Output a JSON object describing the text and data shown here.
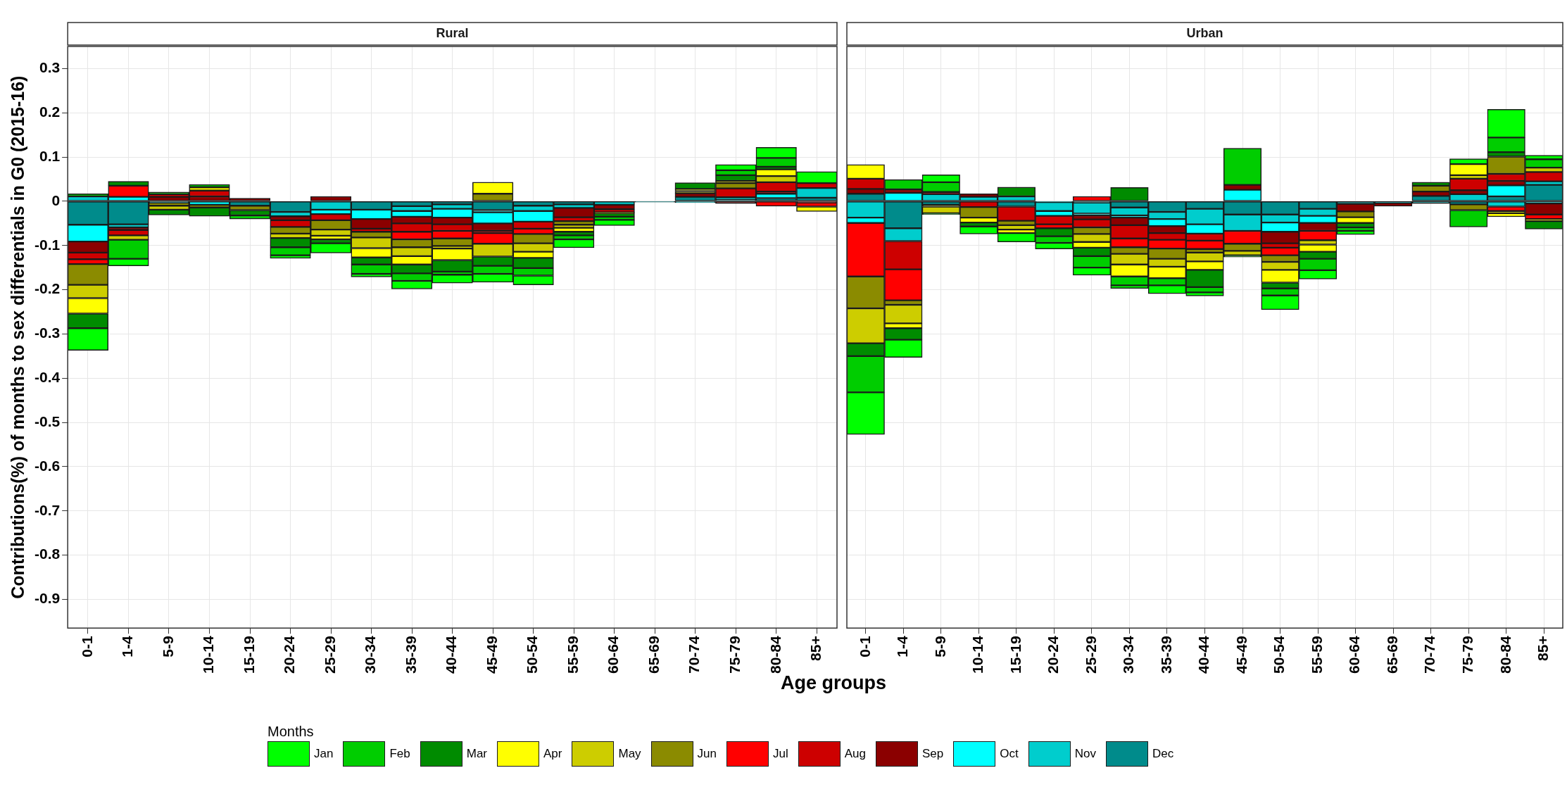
{
  "chart_data": [
    {
      "type": "bar",
      "title": "Rural",
      "xlabel": "Age groups",
      "ylabel": "Contributions(%) of months to sex differentials in G0 (2015-16)",
      "legend_title": "Months",
      "legend": "bottom",
      "stacked": true,
      "grid": true,
      "categories": [
        "0-1",
        "1-4",
        "5-9",
        "10-14",
        "15-19",
        "20-24",
        "25-29",
        "30-34",
        "35-39",
        "40-44",
        "45-49",
        "50-54",
        "55-59",
        "60-64",
        "65-69",
        "70-74",
        "75-79",
        "80-84",
        "85+"
      ],
      "ylim": [
        -0.965,
        0.35
      ],
      "yticks": [
        -0.9,
        -0.8,
        -0.7,
        -0.6,
        -0.5,
        -0.4,
        -0.3,
        -0.2,
        -0.1,
        0,
        0.1,
        0.2,
        0.3
      ],
      "series": [
        {
          "name": "Dec",
          "color": "#008b8b",
          "values": [
            -0.053,
            -0.052,
            -0.003,
            null,
            -0.01,
            -0.024,
            null,
            -0.019,
            -0.011,
            -0.007,
            -0.02,
            -0.01,
            -0.007,
            null,
            -0.002,
            0.01,
            0.003,
            0.007,
            0.008
          ]
        },
        {
          "name": "Nov",
          "color": "#00cdcd",
          "values": [
            0.011,
            -0.007,
            null,
            null,
            null,
            -0.01,
            -0.019,
            null,
            -0.011,
            -0.01,
            -0.005,
            -0.012,
            -0.008,
            -0.008,
            null,
            -0.003,
            0.006,
            null,
            0.022
          ]
        },
        {
          "name": "Oct",
          "color": "#00ffff",
          "values": [
            -0.038,
            0.01,
            null,
            -0.008,
            null,
            null,
            -0.01,
            -0.021,
            -0.013,
            -0.02,
            -0.025,
            -0.024,
            null,
            null,
            null,
            null,
            null,
            0.01,
            null
          ]
        },
        {
          "name": "Sep",
          "color": "#8b0000",
          "values": [
            -0.025,
            -0.006,
            0.01,
            0.011,
            0.007,
            -0.009,
            0.011,
            -0.022,
            -0.015,
            -0.015,
            -0.017,
            null,
            -0.021,
            -0.01,
            null,
            0.008,
            -0.005,
            0.005,
            -0.003
          ]
        },
        {
          "name": "Aug",
          "color": "#cd0000",
          "values": [
            -0.015,
            -0.012,
            0.006,
            0.013,
            null,
            -0.015,
            -0.014,
            -0.007,
            -0.019,
            -0.015,
            -0.005,
            -0.016,
            -0.009,
            -0.007,
            null,
            null,
            0.02,
            0.021,
            0.011
          ]
        },
        {
          "name": "Jul",
          "color": "#ff0000",
          "values": [
            -0.011,
            0.025,
            null,
            null,
            null,
            null,
            null,
            null,
            -0.017,
            -0.017,
            -0.024,
            -0.012,
            null,
            null,
            null,
            null,
            null,
            -0.011,
            -0.009
          ]
        },
        {
          "name": "Jun",
          "color": "#8b8b00",
          "values": [
            -0.047,
            null,
            -0.007,
            -0.006,
            -0.01,
            -0.015,
            -0.021,
            -0.013,
            -0.018,
            -0.017,
            0.017,
            -0.021,
            -0.008,
            null,
            null,
            0.005,
            0.012,
            null,
            null
          ]
        },
        {
          "name": "May",
          "color": "#cdcd00",
          "values": [
            -0.03,
            -0.01,
            -0.009,
            0.008,
            null,
            -0.01,
            -0.014,
            -0.024,
            -0.02,
            -0.006,
            -0.029,
            -0.019,
            -0.007,
            -0.002,
            null,
            0.005,
            0.005,
            0.014,
            null
          ]
        },
        {
          "name": "Apr",
          "color": "#ffff00",
          "values": [
            -0.035,
            null,
            null,
            null,
            null,
            null,
            -0.008,
            -0.021,
            -0.019,
            -0.026,
            0.026,
            -0.014,
            -0.009,
            null,
            null,
            null,
            null,
            0.015,
            -0.011
          ]
        },
        {
          "name": "Mar",
          "color": "#008b00",
          "values": [
            -0.033,
            0.01,
            -0.012,
            -0.02,
            -0.012,
            -0.021,
            -0.009,
            -0.016,
            -0.02,
            -0.026,
            -0.021,
            -0.023,
            -0.008,
            -0.008,
            null,
            0.014,
            0.013,
            0.006,
            null
          ]
        },
        {
          "name": "Feb",
          "color": "#00cd00",
          "values": [
            0.006,
            -0.043,
            0.005,
            0.006,
            -0.008,
            -0.018,
            null,
            -0.021,
            -0.017,
            -0.007,
            -0.018,
            -0.017,
            -0.009,
            -0.007,
            null,
            null,
            0.011,
            0.02,
            null
          ]
        },
        {
          "name": "Jan",
          "color": "#00ff00",
          "values": [
            -0.05,
            -0.016,
            null,
            null,
            null,
            -0.007,
            -0.022,
            -0.007,
            -0.018,
            -0.019,
            -0.019,
            -0.021,
            -0.019,
            -0.013,
            null,
            null,
            0.013,
            0.024,
            0.026
          ]
        }
      ]
    },
    {
      "type": "bar",
      "title": "Urban",
      "stacked": true,
      "grid": true,
      "tick_labels": "x",
      "categories": [
        "0-1",
        "1-4",
        "5-9",
        "10-14",
        "15-19",
        "20-24",
        "25-29",
        "30-34",
        "35-39",
        "40-44",
        "45-49",
        "50-54",
        "55-59",
        "60-64",
        "65-69",
        "70-74",
        "75-79",
        "80-84",
        "85+"
      ],
      "ylim": [
        -0.965,
        0.35
      ],
      "yticks": [
        -0.9,
        -0.8,
        -0.7,
        -0.6,
        -0.5,
        -0.4,
        -0.3,
        -0.2,
        -0.1,
        0,
        0.1,
        0.2,
        0.3
      ],
      "series": [
        {
          "color": "#008b8b",
          "values": [
            0.017,
            -0.061,
            -0.008,
            null,
            -0.012,
            -0.002,
            -0.003,
            -0.014,
            -0.024,
            -0.017,
            -0.03,
            -0.03,
            -0.017,
            -0.006,
            -0.004,
            0.012,
            -0.007,
            0.011,
            0.037
          ]
        },
        {
          "color": "#00cdcd",
          "values": [
            -0.037,
            -0.029,
            0.016,
            0.01,
            0.011,
            -0.02,
            -0.025,
            -0.018,
            -0.016,
            -0.035,
            -0.037,
            -0.018,
            -0.016,
            null,
            null,
            -0.005,
            0.016,
            -0.012,
            0.008
          ]
        },
        {
          "color": "#00ffff",
          "values": [
            -0.012,
            0.019,
            null,
            null,
            null,
            -0.011,
            -0.004,
            -0.005,
            -0.016,
            -0.021,
            0.026,
            -0.021,
            -0.016,
            null,
            null,
            null,
            null,
            0.025,
            -0.005
          ]
        },
        {
          "color": "#8b0000",
          "values": [
            0.011,
            0.008,
            0.005,
            0.007,
            null,
            null,
            -0.009,
            -0.017,
            -0.016,
            null,
            0.011,
            -0.026,
            -0.018,
            -0.017,
            -0.007,
            0.01,
            0.009,
            0.01,
            -0.025
          ]
        },
        {
          "color": "#cd0000",
          "values": [
            0.023,
            -0.064,
            null,
            -0.013,
            -0.032,
            -0.019,
            -0.018,
            -0.03,
            -0.015,
            -0.016,
            null,
            -0.01,
            null,
            null,
            null,
            null,
            0.026,
            0.016,
            0.021
          ]
        },
        {
          "color": "#ff0000",
          "values": [
            -0.121,
            -0.07,
            null,
            null,
            null,
            -0.009,
            0.011,
            -0.02,
            -0.02,
            -0.019,
            -0.029,
            -0.017,
            -0.021,
            null,
            null,
            null,
            null,
            -0.01,
            -0.01
          ]
        },
        {
          "color": "#8b8b00",
          "values": [
            -0.072,
            -0.01,
            -0.004,
            -0.024,
            -0.01,
            null,
            -0.015,
            -0.015,
            -0.023,
            -0.008,
            -0.016,
            -0.015,
            null,
            -0.013,
            null,
            0.013,
            -0.013,
            0.039,
            null
          ]
        },
        {
          "color": "#cdcd00",
          "values": [
            -0.079,
            -0.042,
            -0.015,
            null,
            -0.01,
            null,
            -0.018,
            -0.024,
            -0.018,
            -0.02,
            -0.01,
            -0.018,
            -0.01,
            null,
            null,
            null,
            0.008,
            -0.005,
            0.01
          ]
        },
        {
          "color": "#ffff00",
          "values": [
            0.032,
            -0.011,
            null,
            -0.011,
            -0.008,
            null,
            -0.013,
            -0.027,
            -0.026,
            -0.019,
            null,
            -0.029,
            -0.016,
            -0.013,
            null,
            null,
            0.025,
            -0.008,
            -0.005
          ]
        },
        {
          "color": "#008b00",
          "values": [
            -0.029,
            -0.026,
            -0.003,
            -0.009,
            0.021,
            -0.018,
            -0.019,
            0.031,
            null,
            -0.039,
            -0.004,
            -0.013,
            -0.016,
            -0.01,
            null,
            0.008,
            null,
            0.01,
            -0.018
          ]
        },
        {
          "color": "#00cd00",
          "values": [
            -0.082,
            0.022,
            0.022,
            null,
            null,
            -0.015,
            -0.026,
            -0.02,
            -0.016,
            -0.012,
            0.083,
            -0.016,
            -0.026,
            -0.008,
            null,
            null,
            -0.038,
            0.033,
            0.019
          ]
        },
        {
          "color": "#00ff00",
          "values": [
            -0.095,
            -0.04,
            0.017,
            -0.017,
            -0.02,
            -0.014,
            -0.017,
            -0.007,
            -0.019,
            -0.008,
            null,
            -0.032,
            -0.02,
            -0.008,
            null,
            null,
            0.012,
            0.064,
            0.009
          ]
        }
      ]
    }
  ]
}
